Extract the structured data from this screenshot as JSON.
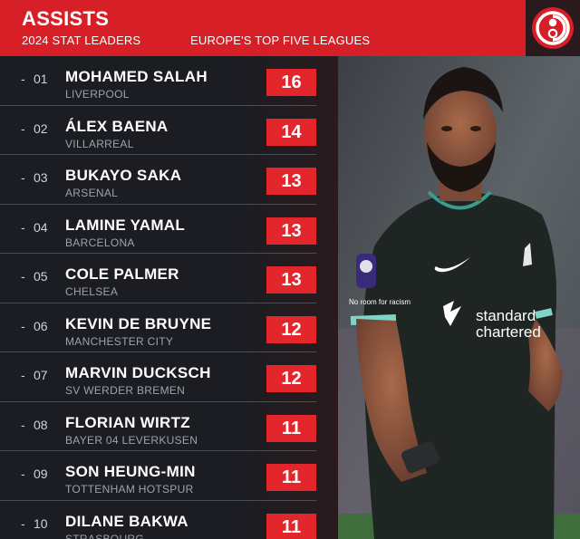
{
  "header": {
    "title": "ASSISTS",
    "subtitle": "2024 STAT LEADERS",
    "region": "EUROPE'S TOP FIVE LEAGUES"
  },
  "colors": {
    "accent": "#d61f26",
    "badge": "#e2262c",
    "panel": "#1b1d22"
  },
  "leaders": [
    {
      "rank": "01",
      "name": "MOHAMED SALAH",
      "club": "LIVERPOOL",
      "assists": "16"
    },
    {
      "rank": "02",
      "name": "ÁLEX BAENA",
      "club": "VILLARREAL",
      "assists": "14"
    },
    {
      "rank": "03",
      "name": "BUKAYO SAKA",
      "club": "ARSENAL",
      "assists": "13"
    },
    {
      "rank": "04",
      "name": "LAMINE YAMAL",
      "club": "BARCELONA",
      "assists": "13"
    },
    {
      "rank": "05",
      "name": "COLE PALMER",
      "club": "CHELSEA",
      "assists": "13"
    },
    {
      "rank": "06",
      "name": "KEVIN DE BRUYNE",
      "club": "MANCHESTER CITY",
      "assists": "12"
    },
    {
      "rank": "07",
      "name": "MARVIN DUCKSCH",
      "club": "SV WERDER BREMEN",
      "assists": "12"
    },
    {
      "rank": "08",
      "name": "FLORIAN WIRTZ",
      "club": "BAYER 04 LEVERKUSEN",
      "assists": "11"
    },
    {
      "rank": "09",
      "name": "SON HEUNG-MIN",
      "club": "TOTTENHAM HOTSPUR",
      "assists": "11"
    },
    {
      "rank": "10",
      "name": "DILANE BAKWA",
      "club": "STRASBOURG",
      "assists": "11"
    }
  ],
  "photo": {
    "sponsor_line1": "standard",
    "sponsor_line2": "chartered",
    "sleeve_text": "No room for racism"
  }
}
